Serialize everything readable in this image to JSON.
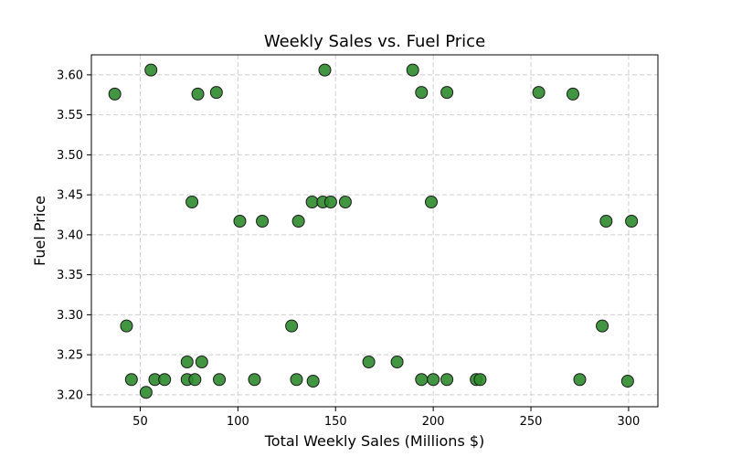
{
  "chart_data": {
    "type": "scatter",
    "title": "Weekly Sales vs. Fuel Price",
    "xlabel": "Total Weekly Sales (Millions $)",
    "ylabel": "Fuel Price",
    "xlim": [
      25,
      315
    ],
    "ylim": [
      3.185,
      3.625
    ],
    "xticks": [
      50,
      100,
      150,
      200,
      250,
      300
    ],
    "yticks": [
      3.2,
      3.25,
      3.3,
      3.35,
      3.4,
      3.45,
      3.5,
      3.55,
      3.6
    ],
    "grid": true,
    "marker_color": "#2e8b2e",
    "marker_edge_color": "#1a1a1a",
    "points": [
      {
        "x": 37,
        "y": 3.576
      },
      {
        "x": 55.5,
        "y": 3.606
      },
      {
        "x": 79.5,
        "y": 3.576
      },
      {
        "x": 89,
        "y": 3.578
      },
      {
        "x": 144.5,
        "y": 3.606
      },
      {
        "x": 189.5,
        "y": 3.606
      },
      {
        "x": 194,
        "y": 3.578
      },
      {
        "x": 207,
        "y": 3.578
      },
      {
        "x": 254,
        "y": 3.578
      },
      {
        "x": 271.5,
        "y": 3.576
      },
      {
        "x": 76.5,
        "y": 3.441
      },
      {
        "x": 101,
        "y": 3.417
      },
      {
        "x": 112.5,
        "y": 3.417
      },
      {
        "x": 131,
        "y": 3.417
      },
      {
        "x": 138,
        "y": 3.441
      },
      {
        "x": 143.5,
        "y": 3.441
      },
      {
        "x": 147.5,
        "y": 3.441
      },
      {
        "x": 155,
        "y": 3.441
      },
      {
        "x": 199,
        "y": 3.441
      },
      {
        "x": 288.5,
        "y": 3.417
      },
      {
        "x": 301.5,
        "y": 3.417
      },
      {
        "x": 43,
        "y": 3.286
      },
      {
        "x": 127.5,
        "y": 3.286
      },
      {
        "x": 286.5,
        "y": 3.286
      },
      {
        "x": 45.5,
        "y": 3.219
      },
      {
        "x": 53,
        "y": 3.203
      },
      {
        "x": 57.5,
        "y": 3.219
      },
      {
        "x": 62.5,
        "y": 3.219
      },
      {
        "x": 74,
        "y": 3.241
      },
      {
        "x": 74,
        "y": 3.219
      },
      {
        "x": 78,
        "y": 3.219
      },
      {
        "x": 81.5,
        "y": 3.241
      },
      {
        "x": 90.5,
        "y": 3.219
      },
      {
        "x": 108.5,
        "y": 3.219
      },
      {
        "x": 130,
        "y": 3.219
      },
      {
        "x": 138.5,
        "y": 3.217
      },
      {
        "x": 167,
        "y": 3.241
      },
      {
        "x": 181.5,
        "y": 3.241
      },
      {
        "x": 194,
        "y": 3.219
      },
      {
        "x": 200,
        "y": 3.219
      },
      {
        "x": 207,
        "y": 3.219
      },
      {
        "x": 222,
        "y": 3.219
      },
      {
        "x": 224,
        "y": 3.219
      },
      {
        "x": 275,
        "y": 3.219
      },
      {
        "x": 299.5,
        "y": 3.217
      }
    ]
  }
}
